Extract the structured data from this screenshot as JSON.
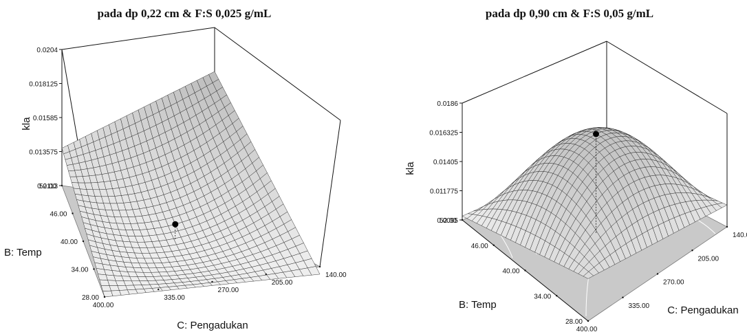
{
  "chart_data": [
    {
      "type": "surface3d",
      "title": "pada dp 0,22 cm & F:S  0,025 g/mL",
      "zlabel": "kla",
      "xlabel": "C: Pengadukan",
      "ylabel": "B: Temp",
      "z_ticks": [
        "0.0113",
        "0.013575",
        "0.01585",
        "0.018125",
        "0.0204"
      ],
      "z_range": [
        0.0113,
        0.0204
      ],
      "temp_ticks": [
        "28.00",
        "34.00",
        "40.00",
        "46.00",
        "52.00"
      ],
      "temp_range": [
        28,
        52
      ],
      "pengadukan_ticks": [
        "400.00",
        "335.00",
        "270.00",
        "205.00",
        "140.00"
      ],
      "pengadukan_range": [
        140,
        400
      ],
      "corner_values": {
        "temp28_peng400": 0.0113,
        "temp28_peng140": 0.0108,
        "temp52_peng400": 0.0138,
        "temp52_peng140": 0.0204
      },
      "design_point": {
        "temp": 40,
        "pengadukan": 270,
        "kla": 0.0123
      },
      "grid": true
    },
    {
      "type": "surface3d",
      "title": "pada dp 0,90 cm & F:S  0,05 g/mL",
      "zlabel": "kla",
      "xlabel": "C: Pengadukan",
      "ylabel": "B: Temp",
      "z_ticks": [
        "0.0095",
        "0.011775",
        "0.01405",
        "0.016325",
        "0.0186"
      ],
      "z_range": [
        0.0095,
        0.0186
      ],
      "temp_ticks": [
        "28.00",
        "34.00",
        "40.00",
        "46.00",
        "52.00"
      ],
      "temp_range": [
        28,
        52
      ],
      "pengadukan_ticks": [
        "400.00",
        "335.00",
        "270.00",
        "205.00",
        "140.00"
      ],
      "pengadukan_range": [
        140,
        400
      ],
      "corner_values": {
        "temp28_peng400": 0.0128,
        "temp28_peng140": 0.0112,
        "temp52_peng400": 0.0098,
        "temp52_peng140": 0.0105
      },
      "design_point": {
        "temp": 40,
        "pengadukan": 270,
        "kla": 0.0172
      },
      "grid": true
    }
  ]
}
